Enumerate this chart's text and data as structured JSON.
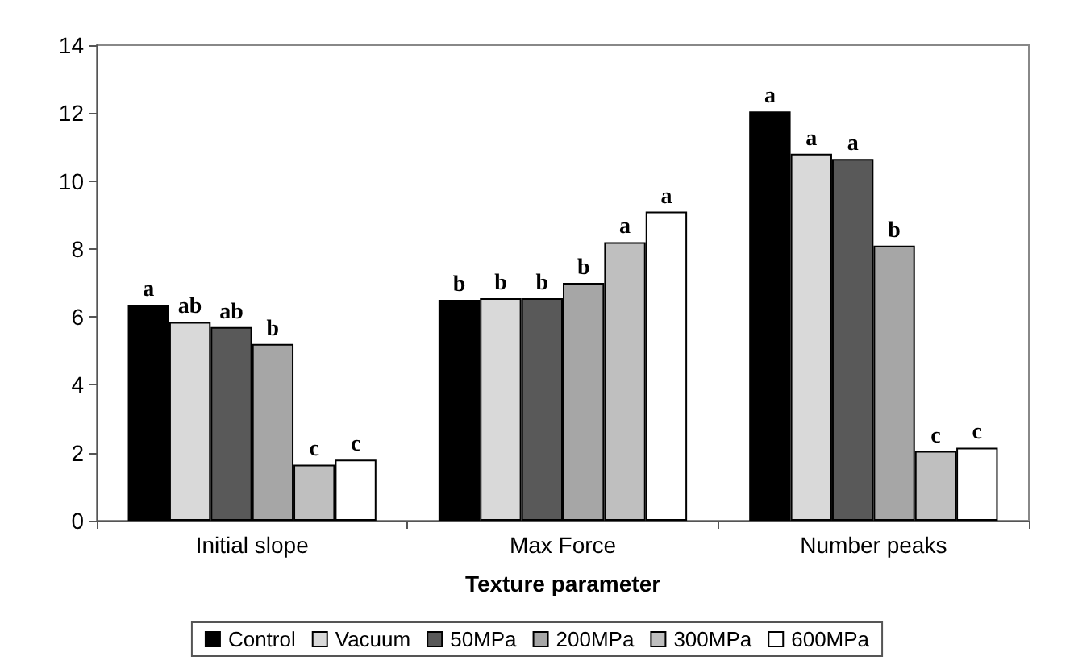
{
  "chart_data": {
    "type": "bar",
    "xlabel": "Texture parameter",
    "categories": [
      "Initial slope",
      "Max Force",
      "Number peaks"
    ],
    "series": [
      {
        "name": "Control",
        "color": "#000000",
        "values": [
          6.35,
          6.5,
          12.05
        ],
        "value_labels": [
          "a",
          "b",
          "a"
        ]
      },
      {
        "name": "Vacuum",
        "color": "#d9d9d9",
        "values": [
          5.85,
          6.55,
          10.8
        ],
        "value_labels": [
          "ab",
          "b",
          "a"
        ]
      },
      {
        "name": "50MPa",
        "color": "#595959",
        "values": [
          5.7,
          6.55,
          10.65
        ],
        "value_labels": [
          "ab",
          "b",
          "a"
        ]
      },
      {
        "name": "200MPa",
        "color": "#a6a6a6",
        "values": [
          5.2,
          7.0,
          8.1
        ],
        "value_labels": [
          "b",
          "b",
          "b"
        ]
      },
      {
        "name": "300MPa",
        "color": "#bfbfbf",
        "values": [
          1.65,
          8.2,
          2.05
        ],
        "value_labels": [
          "c",
          "a",
          "c"
        ]
      },
      {
        "name": "600MPa",
        "color": "#ffffff",
        "values": [
          1.8,
          9.1,
          2.15
        ],
        "value_labels": [
          "c",
          "a",
          "c"
        ]
      }
    ],
    "ylim": [
      0,
      14
    ],
    "yticks": [
      0,
      2,
      4,
      6,
      8,
      10,
      12,
      14
    ],
    "grid": false,
    "legend": "bottom"
  }
}
